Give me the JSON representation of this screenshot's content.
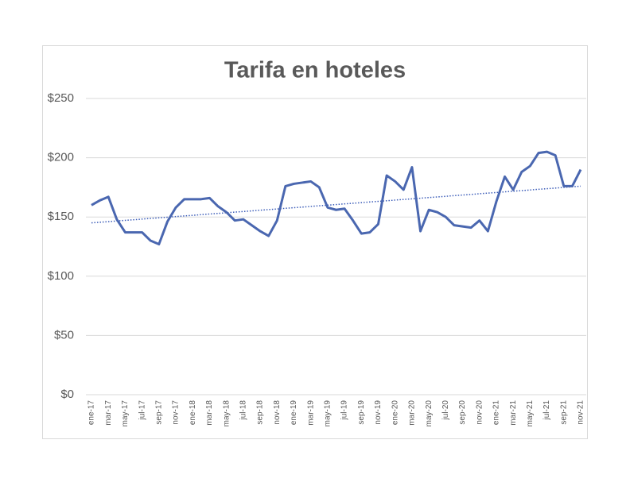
{
  "chart_data": {
    "type": "line",
    "title": "Tarifa en hoteles",
    "categories": [
      "ene-17",
      null,
      "mar-17",
      null,
      "may-17",
      null,
      "jul-17",
      null,
      "sep-17",
      null,
      "nov-17",
      null,
      "ene-18",
      null,
      "mar-18",
      null,
      "may-18",
      null,
      "jul-18",
      null,
      "sep-18",
      null,
      "nov-18",
      null,
      "ene-19",
      null,
      "mar-19",
      null,
      "may-19",
      null,
      "jul-19",
      null,
      "sep-19",
      null,
      "nov-19",
      null,
      "ene-20",
      null,
      "mar-20",
      null,
      "may-20",
      null,
      "jul-20",
      null,
      "sep-20",
      null,
      "nov-20",
      null,
      "ene-21",
      null,
      "mar-21",
      null,
      "may-21",
      null,
      "jul-21",
      null,
      "sep-21",
      null,
      "nov-21"
    ],
    "values": [
      160,
      164,
      167,
      148,
      137,
      137,
      137,
      130,
      127,
      146,
      158,
      165,
      165,
      165,
      166,
      159,
      154,
      147,
      148,
      143,
      138,
      134,
      147,
      176,
      178,
      179,
      180,
      175,
      158,
      156,
      157,
      147,
      136,
      137,
      144,
      185,
      180,
      173,
      192,
      138,
      156,
      154,
      150,
      143,
      142,
      141,
      147,
      138,
      163,
      184,
      173,
      188,
      193,
      204,
      205,
      202,
      176,
      176,
      190
    ],
    "color": "#4a67b0",
    "trendline": {
      "values": [
        145,
        176
      ],
      "color": "#3b5cb8"
    },
    "ylim": [
      0,
      250
    ],
    "yticks": [
      {
        "value": 0,
        "label": "$0"
      },
      {
        "value": 50,
        "label": "$50"
      },
      {
        "value": 100,
        "label": "$100"
      },
      {
        "value": 150,
        "label": "$150"
      },
      {
        "value": 200,
        "label": "$200"
      },
      {
        "value": 250,
        "label": "$250"
      }
    ],
    "grid": true
  }
}
